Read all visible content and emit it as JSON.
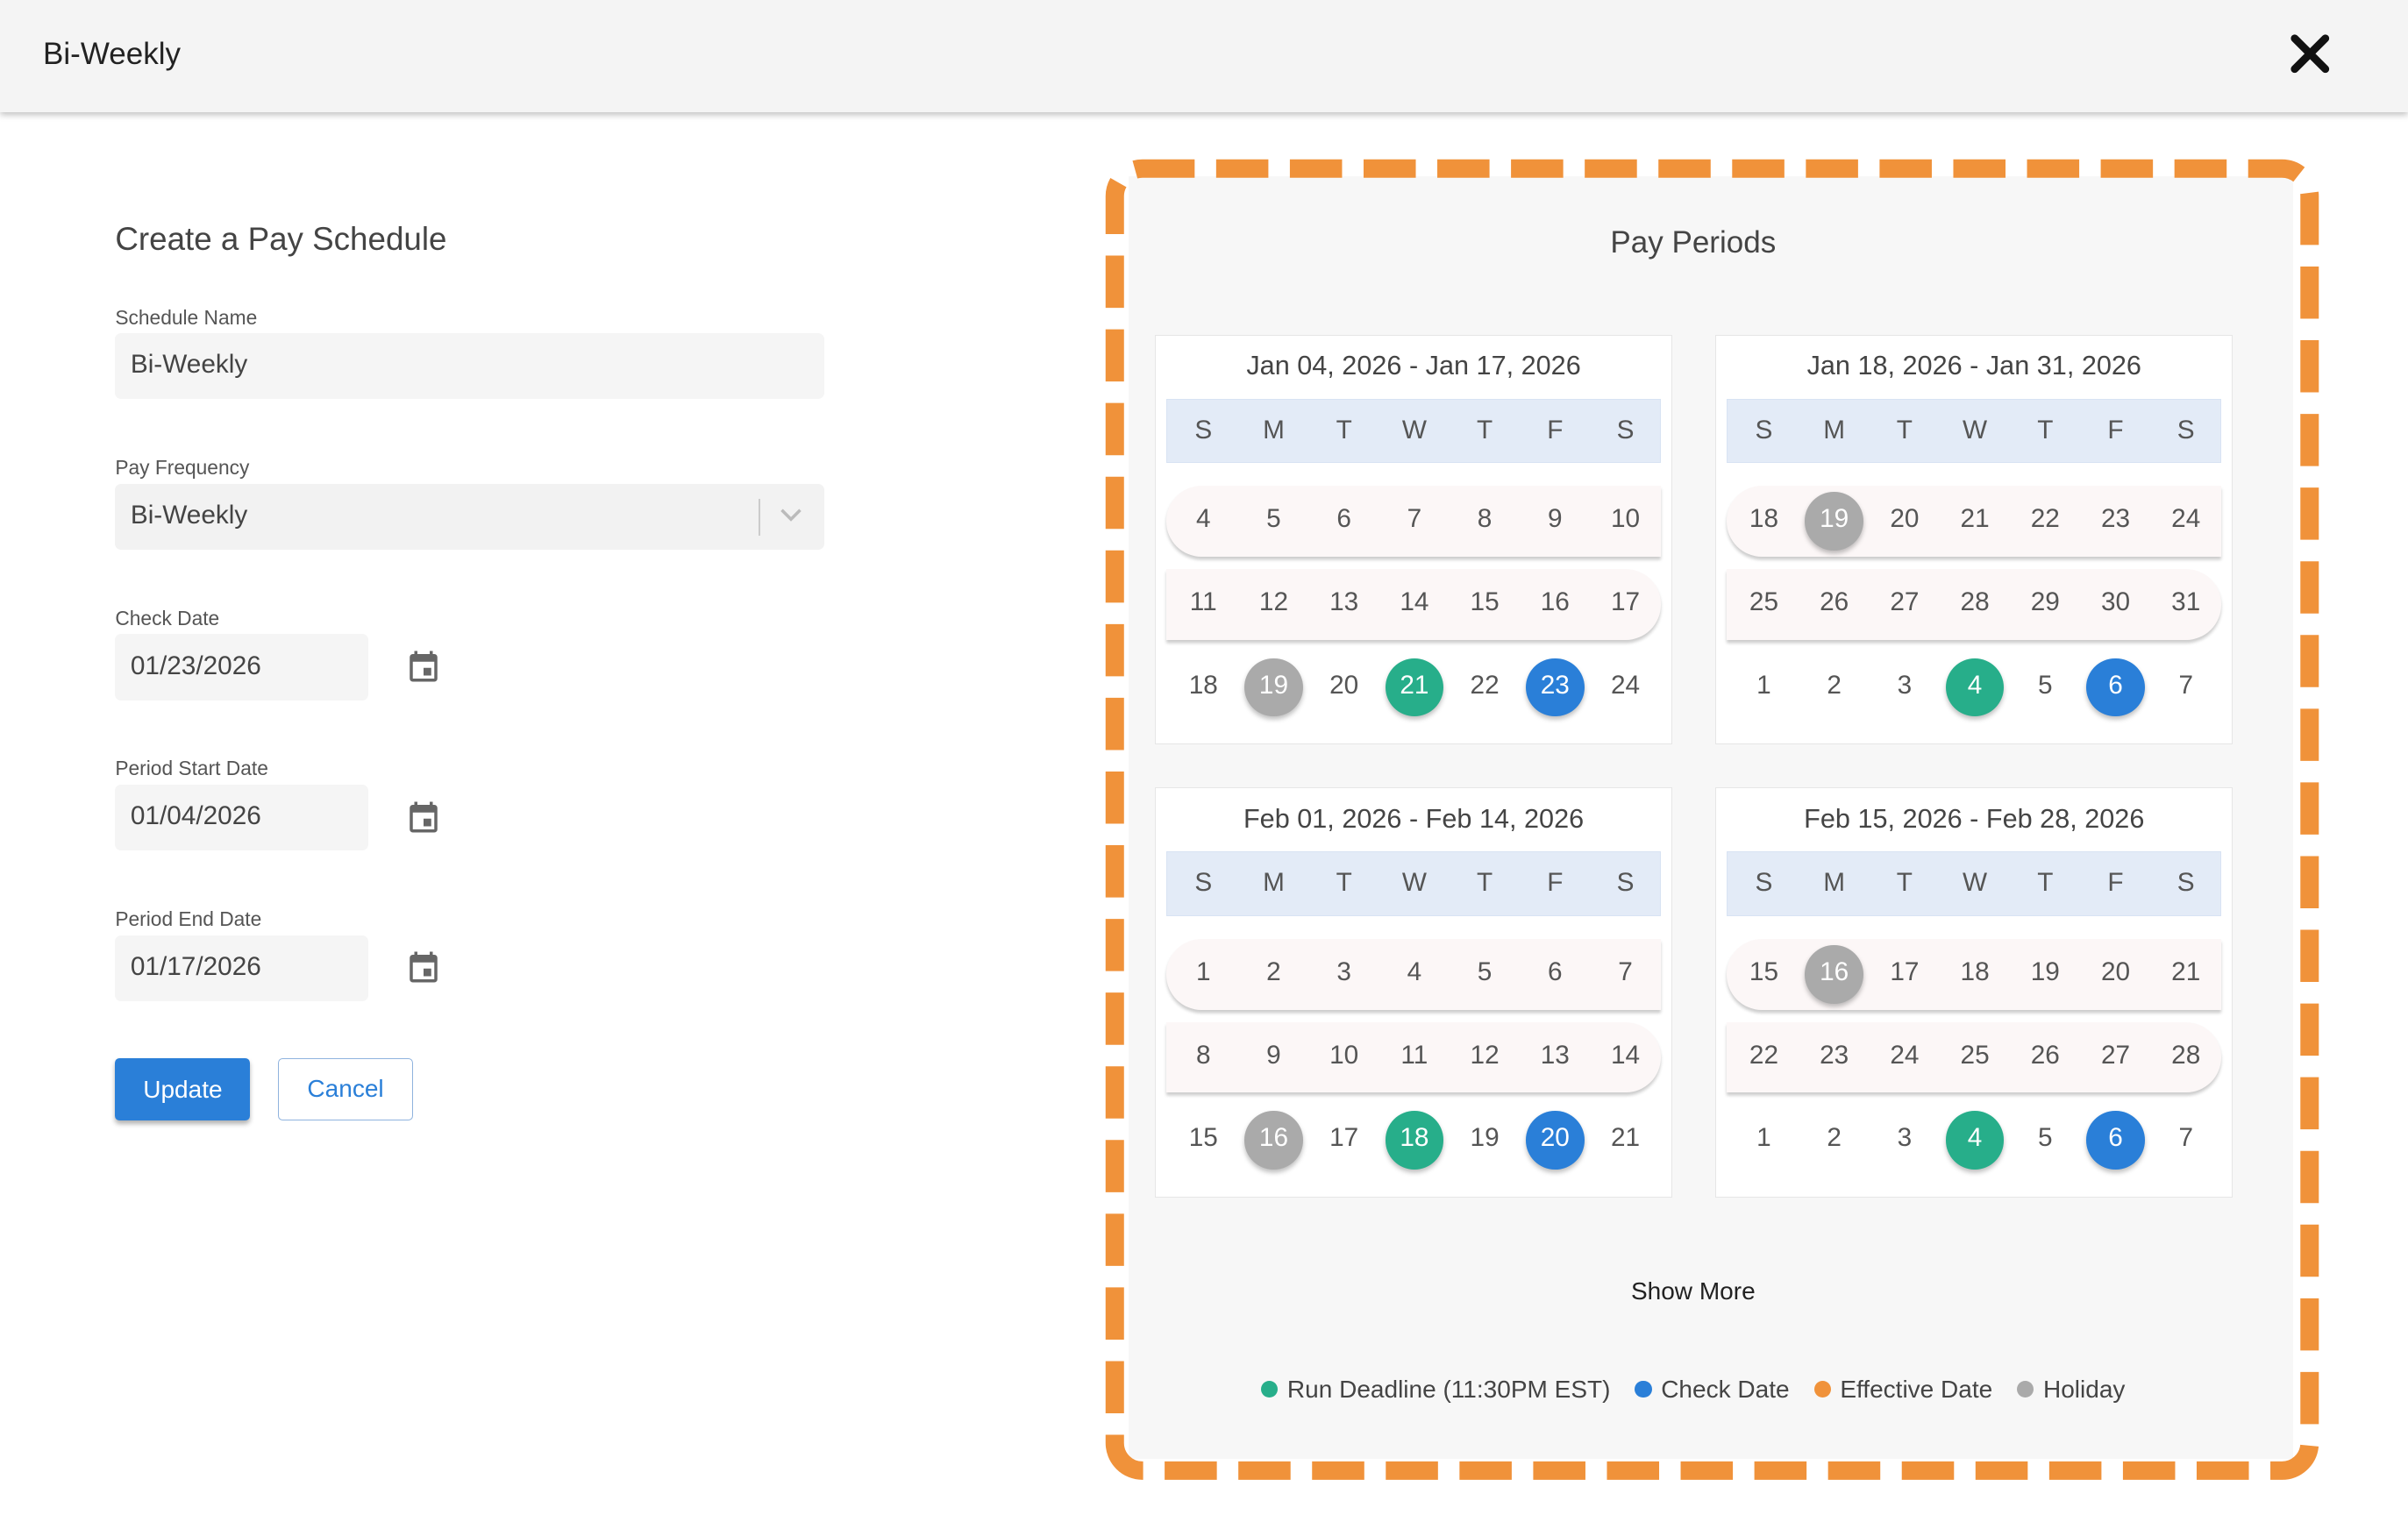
{
  "header": {
    "title": "Bi-Weekly",
    "close_icon": "close-icon"
  },
  "form": {
    "title": "Create a Pay Schedule",
    "schedule_name": {
      "label": "Schedule Name",
      "value": "Bi-Weekly"
    },
    "pay_frequency": {
      "label": "Pay Frequency",
      "value": "Bi-Weekly"
    },
    "check_date": {
      "label": "Check Date",
      "value": "01/23/2026"
    },
    "period_start": {
      "label": "Period Start Date",
      "value": "01/04/2026"
    },
    "period_end": {
      "label": "Period End Date",
      "value": "01/17/2026"
    },
    "update_label": "Update",
    "cancel_label": "Cancel"
  },
  "pay_periods": {
    "title": "Pay Periods",
    "weekdays": [
      "S",
      "M",
      "T",
      "W",
      "T",
      "F",
      "S"
    ],
    "cards": [
      {
        "title": "Jan 04, 2026 - Jan 17, 2026",
        "weeks": [
          [
            {
              "d": "4"
            },
            {
              "d": "5"
            },
            {
              "d": "6"
            },
            {
              "d": "7"
            },
            {
              "d": "8"
            },
            {
              "d": "9"
            },
            {
              "d": "10"
            }
          ],
          [
            {
              "d": "11"
            },
            {
              "d": "12"
            },
            {
              "d": "13"
            },
            {
              "d": "14"
            },
            {
              "d": "15"
            },
            {
              "d": "16"
            },
            {
              "d": "17"
            }
          ],
          [
            {
              "d": "18"
            },
            {
              "d": "19",
              "mark": "holiday"
            },
            {
              "d": "20"
            },
            {
              "d": "21",
              "mark": "run_deadline"
            },
            {
              "d": "22"
            },
            {
              "d": "23",
              "mark": "check_date"
            },
            {
              "d": "24"
            }
          ]
        ]
      },
      {
        "title": "Jan 18, 2026 - Jan 31, 2026",
        "weeks": [
          [
            {
              "d": "18"
            },
            {
              "d": "19",
              "mark": "holiday"
            },
            {
              "d": "20"
            },
            {
              "d": "21"
            },
            {
              "d": "22"
            },
            {
              "d": "23"
            },
            {
              "d": "24"
            }
          ],
          [
            {
              "d": "25"
            },
            {
              "d": "26"
            },
            {
              "d": "27"
            },
            {
              "d": "28"
            },
            {
              "d": "29"
            },
            {
              "d": "30"
            },
            {
              "d": "31"
            }
          ],
          [
            {
              "d": "1"
            },
            {
              "d": "2"
            },
            {
              "d": "3"
            },
            {
              "d": "4",
              "mark": "run_deadline"
            },
            {
              "d": "5"
            },
            {
              "d": "6",
              "mark": "check_date"
            },
            {
              "d": "7"
            }
          ]
        ]
      },
      {
        "title": "Feb 01, 2026 - Feb 14, 2026",
        "weeks": [
          [
            {
              "d": "1"
            },
            {
              "d": "2"
            },
            {
              "d": "3"
            },
            {
              "d": "4"
            },
            {
              "d": "5"
            },
            {
              "d": "6"
            },
            {
              "d": "7"
            }
          ],
          [
            {
              "d": "8"
            },
            {
              "d": "9"
            },
            {
              "d": "10"
            },
            {
              "d": "11"
            },
            {
              "d": "12"
            },
            {
              "d": "13"
            },
            {
              "d": "14"
            }
          ],
          [
            {
              "d": "15"
            },
            {
              "d": "16",
              "mark": "holiday"
            },
            {
              "d": "17"
            },
            {
              "d": "18",
              "mark": "run_deadline"
            },
            {
              "d": "19"
            },
            {
              "d": "20",
              "mark": "check_date"
            },
            {
              "d": "21"
            }
          ]
        ]
      },
      {
        "title": "Feb 15, 2026 - Feb 28, 2026",
        "weeks": [
          [
            {
              "d": "15"
            },
            {
              "d": "16",
              "mark": "holiday"
            },
            {
              "d": "17"
            },
            {
              "d": "18"
            },
            {
              "d": "19"
            },
            {
              "d": "20"
            },
            {
              "d": "21"
            }
          ],
          [
            {
              "d": "22"
            },
            {
              "d": "23"
            },
            {
              "d": "24"
            },
            {
              "d": "25"
            },
            {
              "d": "26"
            },
            {
              "d": "27"
            },
            {
              "d": "28"
            }
          ],
          [
            {
              "d": "1"
            },
            {
              "d": "2"
            },
            {
              "d": "3"
            },
            {
              "d": "4",
              "mark": "run_deadline"
            },
            {
              "d": "5"
            },
            {
              "d": "6",
              "mark": "check_date"
            },
            {
              "d": "7"
            }
          ]
        ]
      }
    ],
    "show_more": "Show More",
    "legend": [
      {
        "key": "run_deadline",
        "label": "Run Deadline (11:30PM EST)",
        "color": "#27ae8a"
      },
      {
        "key": "check_date",
        "label": "Check Date",
        "color": "#2a7fd8"
      },
      {
        "key": "effective_date",
        "label": "Effective Date",
        "color": "#f0923a"
      },
      {
        "key": "holiday",
        "label": "Holiday",
        "color": "#aaaaaa"
      }
    ],
    "highlight_border_color": "#f0923a"
  }
}
